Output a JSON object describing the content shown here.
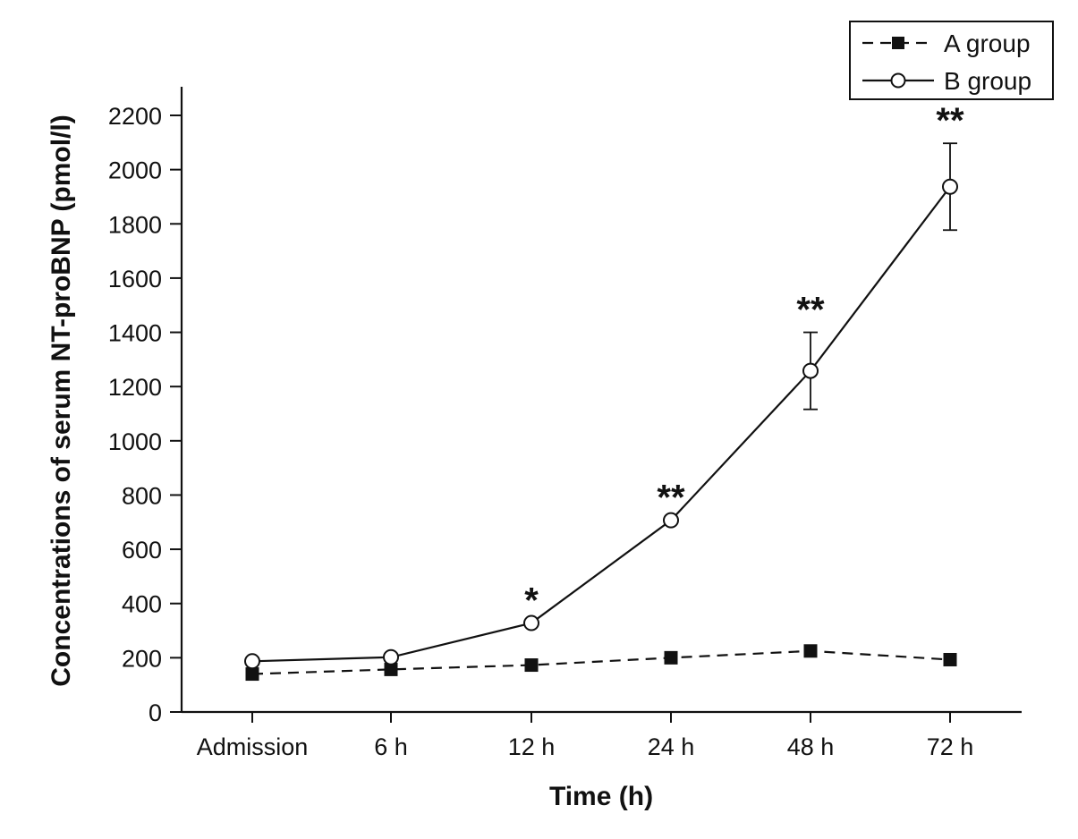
{
  "chart_data": {
    "type": "line",
    "title": "",
    "xlabel": "Time (h)",
    "ylabel": "Concentrations of serum NT-proBNP (pmol/l)",
    "categories": [
      "Admission",
      "6 h",
      "12 h",
      "24 h",
      "48 h",
      "72 h"
    ],
    "yticks": [
      0,
      200,
      400,
      600,
      800,
      1000,
      1200,
      1400,
      1600,
      1800,
      2000,
      2200
    ],
    "ylim": [
      0,
      2300
    ],
    "grid": false,
    "legend_position": "top-right",
    "series": [
      {
        "name": "A group",
        "marker": "filled-square",
        "line_style": "dashed",
        "values": [
          140,
          157,
          173,
          200,
          225,
          193
        ],
        "errors": [
          null,
          null,
          null,
          null,
          null,
          null
        ]
      },
      {
        "name": "B group",
        "marker": "open-circle",
        "line_style": "solid",
        "values": [
          187,
          202,
          328,
          707,
          1258,
          1937
        ],
        "errors": [
          null,
          null,
          null,
          null,
          142,
          160
        ]
      }
    ],
    "annotations": [
      {
        "category_index": 2,
        "text": "*"
      },
      {
        "category_index": 3,
        "text": "**"
      },
      {
        "category_index": 4,
        "text": "**"
      },
      {
        "category_index": 5,
        "text": "**"
      }
    ],
    "colors": {
      "line": "#111111",
      "marker_fill_A": "#111111",
      "marker_fill_B": "#ffffff"
    }
  }
}
